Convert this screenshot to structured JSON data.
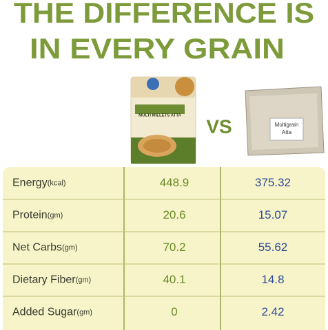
{
  "header": {
    "title_lines": [
      "THE DIFFERENCE IS",
      "IN EVERY GRAIN"
    ]
  },
  "comparison": {
    "vs": "VS",
    "left_product_label": "MULTI MILLETS ATTA",
    "right_product_label": [
      "Multigrain",
      "Atta"
    ]
  },
  "table": {
    "rows": [
      {
        "nutrient": "Energy",
        "unit": "(kcal)",
        "ours": 448.9,
        "other": 375.32
      },
      {
        "nutrient": "Protein",
        "unit": "(gm)",
        "ours": 20.6,
        "other": 15.07
      },
      {
        "nutrient": "Net Carbs",
        "unit": "(gm)",
        "ours": 70.2,
        "other": 55.62
      },
      {
        "nutrient": "Dietary Fiber",
        "unit": "(gm)",
        "ours": 40.1,
        "other": 14.8
      },
      {
        "nutrient": "Added Sugar",
        "unit": "(gm)",
        "ours": 0,
        "other": 2.42
      }
    ]
  }
}
